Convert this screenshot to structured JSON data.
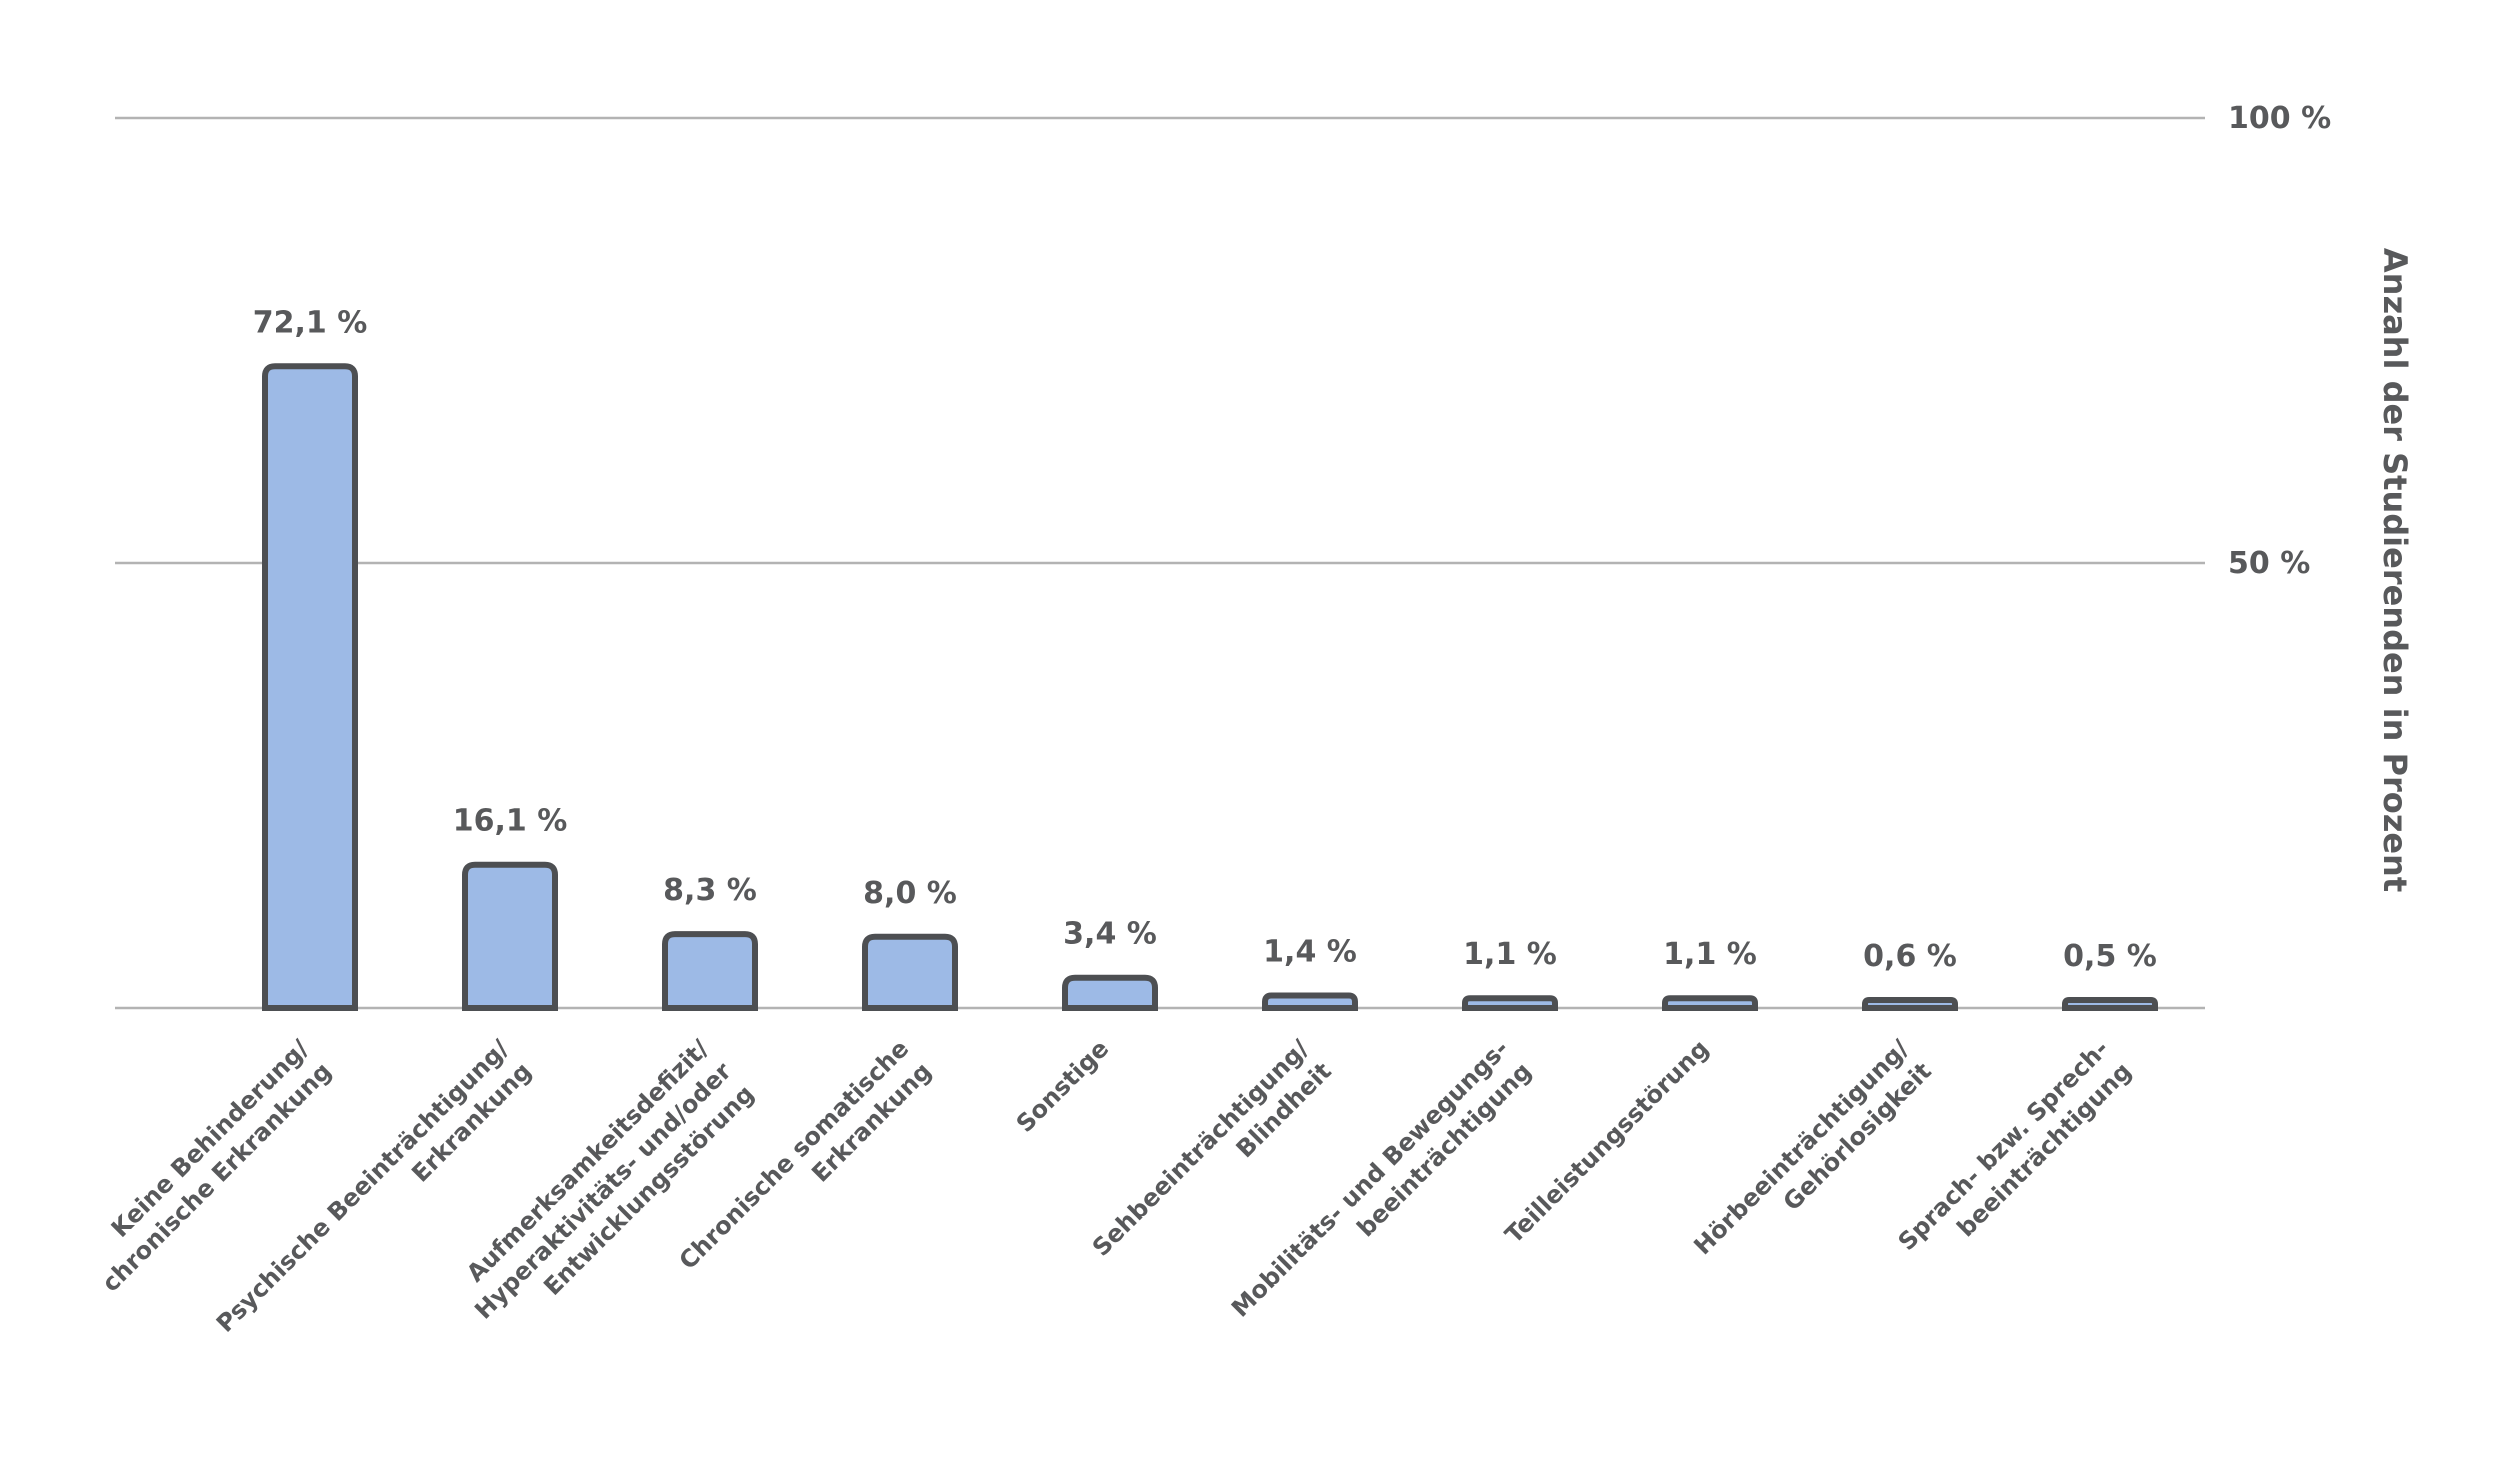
{
  "chart_data": {
    "type": "bar",
    "categories": [
      [
        "Keine Behinderung/",
        "chronische Erkrankung"
      ],
      [
        "Psychische Beeinträchtigung/",
        "Erkrankung"
      ],
      [
        "Aufmerksamkeitsdefizit/",
        "Hyperaktivitäts- und/oder",
        "Entwicklungsstörung"
      ],
      [
        "Chronische somatische",
        "Erkrankung"
      ],
      [
        "Sonstige"
      ],
      [
        "Sehbeeinträchtigung/",
        "Blindheit"
      ],
      [
        "Mobilitäts- und Bewegungs-",
        "beeinträchtigung"
      ],
      [
        "Teilleistungsstörung"
      ],
      [
        "Hörbeeinträchtigung/",
        "Gehörlosigkeit"
      ],
      [
        "Sprach- bzw. Sprech-",
        "beeinträchtigung"
      ]
    ],
    "values": [
      72.1,
      16.1,
      8.3,
      8.0,
      3.4,
      1.4,
      1.1,
      1.1,
      0.6,
      0.5
    ],
    "value_labels": [
      "72,1 %",
      "16,1 %",
      "8,3 %",
      "8,0 %",
      "3,4 %",
      "1,4 %",
      "1,1 %",
      "1,1 %",
      "0,6 %",
      "0,5 %"
    ],
    "ylim": [
      0,
      100
    ],
    "yticks": [
      50,
      100
    ],
    "ytick_labels": [
      "50 %",
      "100 %"
    ],
    "ylabel": "Anzahl der Studierenden in Prozent",
    "grid": true,
    "colors": {
      "bar_fill": "#9dbae6",
      "bar_stroke": "#4d4f52",
      "grid": "#b3b3b3",
      "text": "#58595b"
    }
  }
}
